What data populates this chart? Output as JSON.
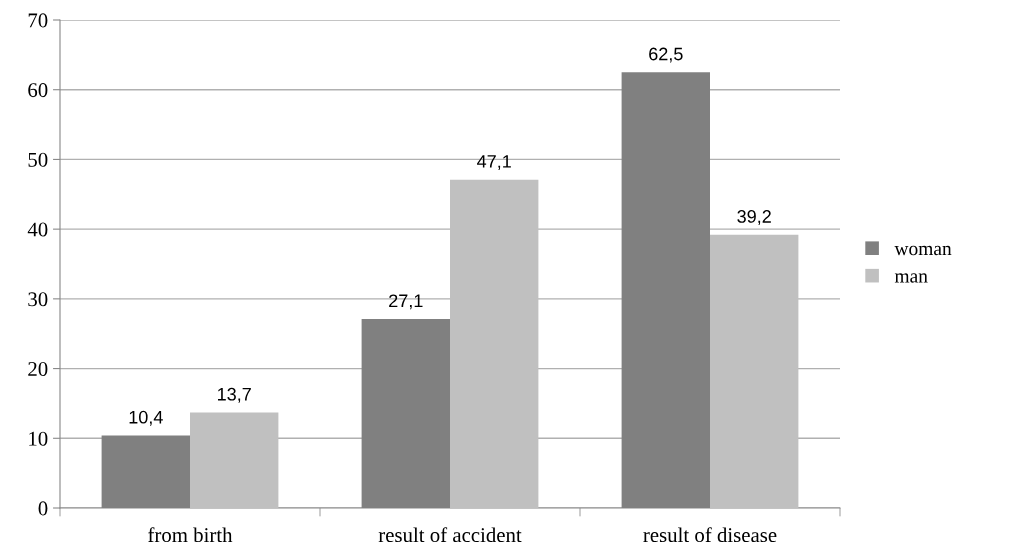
{
  "chart_data": {
    "type": "bar",
    "categories": [
      "from birth",
      "result of accident",
      "result of disease"
    ],
    "series": [
      {
        "name": "woman",
        "color": "#808080",
        "values": [
          10.4,
          27.1,
          62.5
        ],
        "value_labels": [
          "10,4",
          "27,1",
          "62,5"
        ]
      },
      {
        "name": "man",
        "color": "#c0c0c0",
        "values": [
          13.7,
          47.1,
          39.2
        ],
        "value_labels": [
          "13,7",
          "47,1",
          "39,2"
        ]
      }
    ],
    "ylim": [
      0,
      70
    ],
    "yticks": [
      0,
      10,
      20,
      30,
      40,
      50,
      60,
      70
    ],
    "grid": "y",
    "legend": "right"
  }
}
